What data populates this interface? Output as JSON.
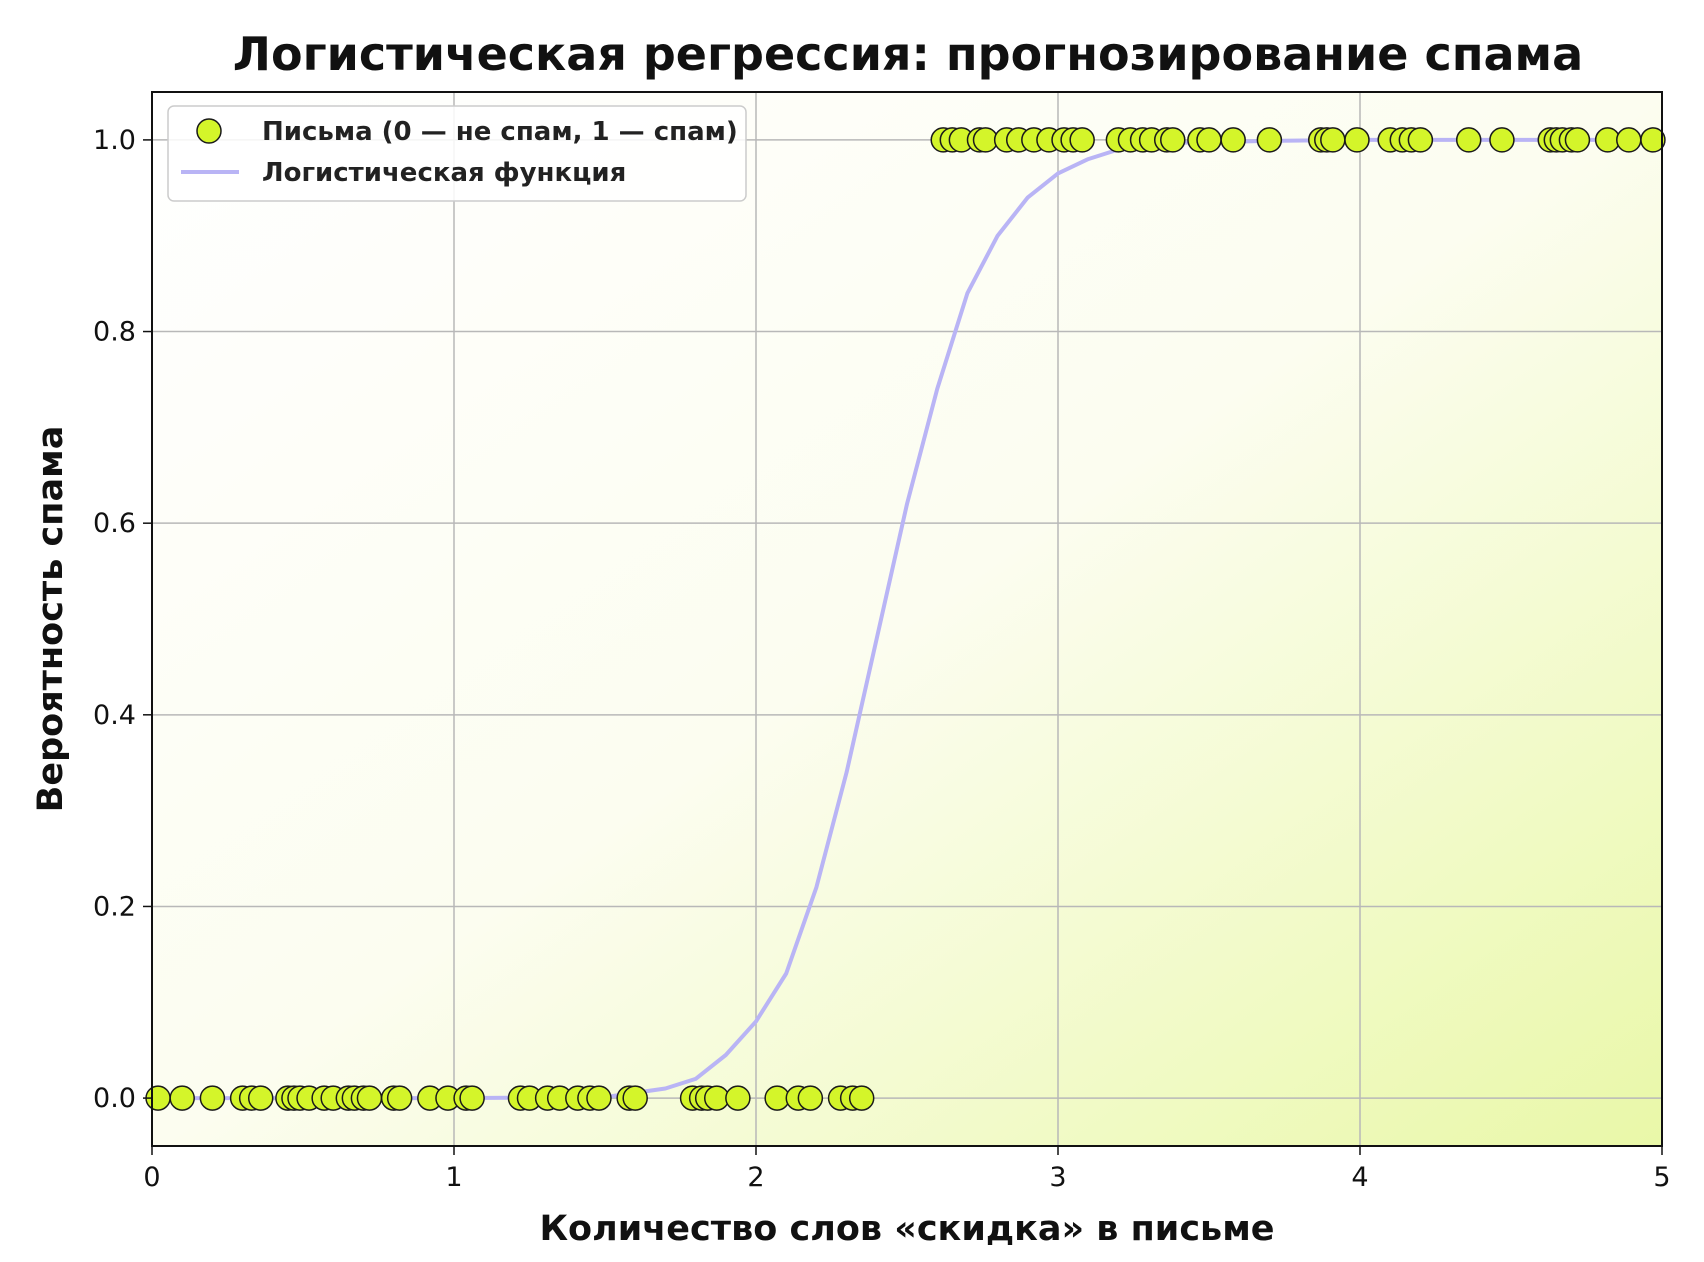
{
  "chart_data": {
    "type": "scatter",
    "title": "Логистическая регрессия: прогнозирование спама",
    "xlabel": "Количество слов «скидка» в письме",
    "ylabel": "Вероятность спама",
    "xlim": [
      0,
      5
    ],
    "ylim": [
      -0.05,
      1.05
    ],
    "x_ticks": [
      "0",
      "1",
      "2",
      "3",
      "4",
      "5"
    ],
    "y_ticks": [
      "0.0",
      "0.2",
      "0.4",
      "0.6",
      "0.8",
      "1.0"
    ],
    "grid": true,
    "legend_position": "top-left",
    "background": "gradient white to light yellow-green (bottom-right)",
    "series": [
      {
        "name": "Письма (0 — не спам, 1 — спам)",
        "kind": "scatter",
        "color": "#d4f52a",
        "edge_color": "#1a1a1a",
        "points": [
          {
            "x": 0.02,
            "y": 0
          },
          {
            "x": 0.1,
            "y": 0
          },
          {
            "x": 0.2,
            "y": 0
          },
          {
            "x": 0.3,
            "y": 0
          },
          {
            "x": 0.33,
            "y": 0
          },
          {
            "x": 0.36,
            "y": 0
          },
          {
            "x": 0.45,
            "y": 0
          },
          {
            "x": 0.47,
            "y": 0
          },
          {
            "x": 0.49,
            "y": 0
          },
          {
            "x": 0.52,
            "y": 0
          },
          {
            "x": 0.57,
            "y": 0
          },
          {
            "x": 0.6,
            "y": 0
          },
          {
            "x": 0.65,
            "y": 0
          },
          {
            "x": 0.67,
            "y": 0
          },
          {
            "x": 0.7,
            "y": 0
          },
          {
            "x": 0.72,
            "y": 0
          },
          {
            "x": 0.8,
            "y": 0
          },
          {
            "x": 0.82,
            "y": 0
          },
          {
            "x": 0.92,
            "y": 0
          },
          {
            "x": 0.98,
            "y": 0
          },
          {
            "x": 1.04,
            "y": 0
          },
          {
            "x": 1.06,
            "y": 0
          },
          {
            "x": 1.22,
            "y": 0
          },
          {
            "x": 1.25,
            "y": 0
          },
          {
            "x": 1.31,
            "y": 0
          },
          {
            "x": 1.35,
            "y": 0
          },
          {
            "x": 1.41,
            "y": 0
          },
          {
            "x": 1.45,
            "y": 0
          },
          {
            "x": 1.48,
            "y": 0
          },
          {
            "x": 1.58,
            "y": 0
          },
          {
            "x": 1.6,
            "y": 0
          },
          {
            "x": 1.79,
            "y": 0
          },
          {
            "x": 1.82,
            "y": 0
          },
          {
            "x": 1.84,
            "y": 0
          },
          {
            "x": 1.87,
            "y": 0
          },
          {
            "x": 1.94,
            "y": 0
          },
          {
            "x": 2.07,
            "y": 0
          },
          {
            "x": 2.14,
            "y": 0
          },
          {
            "x": 2.18,
            "y": 0
          },
          {
            "x": 2.28,
            "y": 0
          },
          {
            "x": 2.32,
            "y": 0
          },
          {
            "x": 2.35,
            "y": 0
          },
          {
            "x": 2.62,
            "y": 1
          },
          {
            "x": 2.65,
            "y": 1
          },
          {
            "x": 2.68,
            "y": 1
          },
          {
            "x": 2.74,
            "y": 1
          },
          {
            "x": 2.76,
            "y": 1
          },
          {
            "x": 2.83,
            "y": 1
          },
          {
            "x": 2.87,
            "y": 1
          },
          {
            "x": 2.92,
            "y": 1
          },
          {
            "x": 2.97,
            "y": 1
          },
          {
            "x": 3.02,
            "y": 1
          },
          {
            "x": 3.05,
            "y": 1
          },
          {
            "x": 3.08,
            "y": 1
          },
          {
            "x": 3.2,
            "y": 1
          },
          {
            "x": 3.24,
            "y": 1
          },
          {
            "x": 3.28,
            "y": 1
          },
          {
            "x": 3.31,
            "y": 1
          },
          {
            "x": 3.36,
            "y": 1
          },
          {
            "x": 3.38,
            "y": 1
          },
          {
            "x": 3.47,
            "y": 1
          },
          {
            "x": 3.5,
            "y": 1
          },
          {
            "x": 3.58,
            "y": 1
          },
          {
            "x": 3.7,
            "y": 1
          },
          {
            "x": 3.87,
            "y": 1
          },
          {
            "x": 3.89,
            "y": 1
          },
          {
            "x": 3.91,
            "y": 1
          },
          {
            "x": 3.99,
            "y": 1
          },
          {
            "x": 4.1,
            "y": 1
          },
          {
            "x": 4.14,
            "y": 1
          },
          {
            "x": 4.17,
            "y": 1
          },
          {
            "x": 4.2,
            "y": 1
          },
          {
            "x": 4.36,
            "y": 1
          },
          {
            "x": 4.47,
            "y": 1
          },
          {
            "x": 4.63,
            "y": 1
          },
          {
            "x": 4.65,
            "y": 1
          },
          {
            "x": 4.67,
            "y": 1
          },
          {
            "x": 4.7,
            "y": 1
          },
          {
            "x": 4.72,
            "y": 1
          },
          {
            "x": 4.82,
            "y": 1
          },
          {
            "x": 4.89,
            "y": 1
          },
          {
            "x": 4.97,
            "y": 1
          }
        ]
      },
      {
        "name": "Логистическая функция",
        "kind": "line",
        "color": "#b9b4f5",
        "points": [
          {
            "x": 0.0,
            "y": 0.0
          },
          {
            "x": 1.0,
            "y": 0.0
          },
          {
            "x": 1.5,
            "y": 0.001
          },
          {
            "x": 1.7,
            "y": 0.01
          },
          {
            "x": 1.8,
            "y": 0.02
          },
          {
            "x": 1.9,
            "y": 0.045
          },
          {
            "x": 2.0,
            "y": 0.08
          },
          {
            "x": 2.1,
            "y": 0.13
          },
          {
            "x": 2.2,
            "y": 0.22
          },
          {
            "x": 2.3,
            "y": 0.34
          },
          {
            "x": 2.4,
            "y": 0.48
          },
          {
            "x": 2.5,
            "y": 0.62
          },
          {
            "x": 2.6,
            "y": 0.74
          },
          {
            "x": 2.7,
            "y": 0.84
          },
          {
            "x": 2.8,
            "y": 0.9
          },
          {
            "x": 2.9,
            "y": 0.94
          },
          {
            "x": 3.0,
            "y": 0.965
          },
          {
            "x": 3.1,
            "y": 0.98
          },
          {
            "x": 3.2,
            "y": 0.99
          },
          {
            "x": 3.4,
            "y": 0.997
          },
          {
            "x": 3.7,
            "y": 0.999
          },
          {
            "x": 4.0,
            "y": 1.0
          },
          {
            "x": 5.0,
            "y": 1.0
          }
        ]
      }
    ]
  }
}
